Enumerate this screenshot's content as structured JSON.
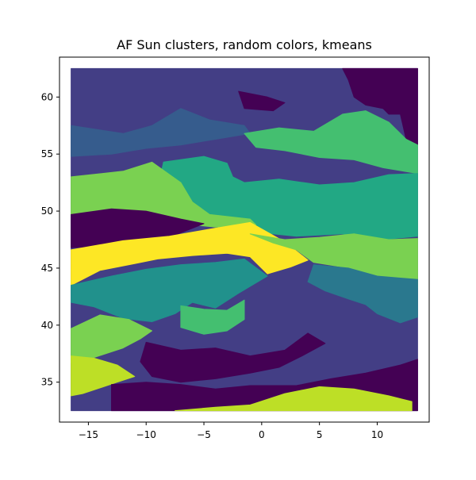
{
  "chart_data": {
    "type": "heatmap",
    "title": "AF Sun clusters, random colors, kmeans",
    "xlabel": "",
    "ylabel": "",
    "xlim": [
      -17.5,
      14.5
    ],
    "ylim": [
      31.5,
      63.5
    ],
    "x_ticks": [
      -15,
      -10,
      -5,
      0,
      5,
      10
    ],
    "y_ticks": [
      35,
      40,
      45,
      50,
      55,
      60
    ],
    "x_tick_labels": [
      "−15",
      "−10",
      "−5",
      "0",
      "5",
      "10"
    ],
    "y_tick_labels": [
      "35",
      "40",
      "45",
      "50",
      "55",
      "60"
    ],
    "grid": false,
    "legend": "none",
    "colormap": "viridis",
    "palette": [
      "#440154",
      "#433e85",
      "#365c8d",
      "#2a788e",
      "#21918c",
      "#22a884",
      "#44bf70",
      "#7ad151",
      "#bddf26",
      "#fde725"
    ],
    "regions": [
      {
        "cluster": 1,
        "color": "#433e85",
        "points": [
          [
            -16.5,
            62.5
          ],
          [
            13.5,
            62.5
          ],
          [
            13.5,
            32.5
          ],
          [
            -16.5,
            32.5
          ]
        ]
      },
      {
        "cluster": 0,
        "color": "#440154",
        "points": [
          [
            7,
            62.5
          ],
          [
            13.5,
            62.5
          ],
          [
            13.5,
            55.8
          ],
          [
            12.5,
            56.3
          ],
          [
            12,
            58.5
          ],
          [
            11,
            58.5
          ],
          [
            10.5,
            59
          ],
          [
            9,
            59.3
          ],
          [
            8,
            60
          ],
          [
            7.5,
            61.5
          ]
        ]
      },
      {
        "cluster": 2,
        "color": "#365c8d",
        "points": [
          [
            -16.5,
            57.5
          ],
          [
            -12,
            56.8
          ],
          [
            -9.5,
            57.5
          ],
          [
            -7,
            59
          ],
          [
            -4.5,
            58
          ],
          [
            -1.5,
            57.5
          ],
          [
            -1,
            56.8
          ],
          [
            -4,
            56.3
          ],
          [
            -7,
            55.8
          ],
          [
            -10,
            55.5
          ],
          [
            -13,
            55
          ],
          [
            -16.5,
            54.8
          ]
        ]
      },
      {
        "cluster": 0,
        "color": "#440154",
        "points": [
          [
            -2,
            60.5
          ],
          [
            0.5,
            60
          ],
          [
            2,
            59.5
          ],
          [
            1,
            58.8
          ],
          [
            -1.5,
            59
          ]
        ]
      },
      {
        "cluster": 6,
        "color": "#44bf70",
        "points": [
          [
            -1.5,
            56.8
          ],
          [
            1.5,
            57.3
          ],
          [
            4.5,
            57
          ],
          [
            7,
            58.5
          ],
          [
            9,
            58.8
          ],
          [
            11,
            57.8
          ],
          [
            12.5,
            56.3
          ],
          [
            13.5,
            55.8
          ],
          [
            13.5,
            53.3
          ],
          [
            10.5,
            53.8
          ],
          [
            8,
            54.5
          ],
          [
            5,
            54.7
          ],
          [
            2,
            55.3
          ],
          [
            -0.5,
            55.6
          ]
        ]
      },
      {
        "cluster": 5,
        "color": "#22a884",
        "points": [
          [
            -8.5,
            54.3
          ],
          [
            -5,
            54.8
          ],
          [
            -3,
            54.2
          ],
          [
            -2.5,
            53
          ],
          [
            -1.5,
            52.5
          ],
          [
            1.5,
            52.8
          ],
          [
            5,
            52.3
          ],
          [
            8,
            52.5
          ],
          [
            11,
            53.2
          ],
          [
            13.5,
            53.3
          ],
          [
            13.5,
            47.8
          ],
          [
            10.5,
            47.5
          ],
          [
            7,
            48
          ],
          [
            3,
            47.8
          ],
          [
            -1,
            48.2
          ],
          [
            -4.5,
            49
          ],
          [
            -7,
            50
          ],
          [
            -9,
            52
          ]
        ]
      },
      {
        "cluster": 8,
        "color": "#7ad151",
        "points": [
          [
            -16.5,
            53
          ],
          [
            -12,
            53.5
          ],
          [
            -9.5,
            54.3
          ],
          [
            -7,
            52.5
          ],
          [
            -6,
            50.8
          ],
          [
            -4.5,
            49.7
          ],
          [
            -1,
            49.3
          ],
          [
            -0.5,
            48.8
          ],
          [
            -4,
            48.6
          ],
          [
            -7,
            48.9
          ],
          [
            -10,
            49.1
          ],
          [
            -13,
            49.4
          ],
          [
            -16.5,
            49.7
          ]
        ]
      },
      {
        "cluster": 0,
        "color": "#440154",
        "points": [
          [
            -16.5,
            49.7
          ],
          [
            -13,
            50.2
          ],
          [
            -10,
            50
          ],
          [
            -7,
            49.3
          ],
          [
            -5,
            48.9
          ],
          [
            -8,
            47.7
          ],
          [
            -11,
            47.4
          ],
          [
            -14,
            46.9
          ],
          [
            -16.5,
            46.8
          ]
        ]
      },
      {
        "cluster": 9,
        "color": "#fde725",
        "points": [
          [
            -16.5,
            46.6
          ],
          [
            -12,
            47.4
          ],
          [
            -8,
            47.8
          ],
          [
            -4,
            48.5
          ],
          [
            -1,
            49
          ],
          [
            2,
            47.3
          ],
          [
            4,
            45.7
          ],
          [
            2.5,
            45.1
          ],
          [
            0.5,
            44.5
          ],
          [
            -1,
            46
          ],
          [
            -3,
            46.3
          ],
          [
            -6,
            46.1
          ],
          [
            -9,
            45.8
          ],
          [
            -11,
            45.4
          ],
          [
            -14,
            44.8
          ],
          [
            -16.5,
            43.5
          ]
        ]
      },
      {
        "cluster": 8,
        "color": "#7ad151",
        "points": [
          [
            -1,
            48
          ],
          [
            2,
            47.5
          ],
          [
            5,
            47.7
          ],
          [
            8,
            48
          ],
          [
            11,
            47.5
          ],
          [
            13.5,
            47.6
          ],
          [
            13.5,
            43.3
          ],
          [
            11,
            43.1
          ],
          [
            9,
            44.5
          ],
          [
            7,
            45.1
          ],
          [
            4.5,
            45.5
          ],
          [
            3,
            46.6
          ],
          [
            1,
            47.2
          ]
        ]
      },
      {
        "cluster": 4,
        "color": "#21918c",
        "points": [
          [
            -16.5,
            43.5
          ],
          [
            -13,
            44.3
          ],
          [
            -10,
            44.9
          ],
          [
            -7,
            45.3
          ],
          [
            -4,
            45.5
          ],
          [
            -1.5,
            45.8
          ],
          [
            0.5,
            44.3
          ],
          [
            -2,
            42.8
          ],
          [
            -4,
            41.5
          ],
          [
            -6,
            42
          ],
          [
            -7.5,
            41
          ],
          [
            -9.5,
            40.3
          ],
          [
            -12,
            40.6
          ],
          [
            -14.5,
            41.6
          ],
          [
            -16.5,
            42
          ]
        ]
      },
      {
        "cluster": 8,
        "color": "#7ad151",
        "points": [
          [
            -16.5,
            39.7
          ],
          [
            -14,
            40.9
          ],
          [
            -11.5,
            40.5
          ],
          [
            -9.5,
            39.5
          ],
          [
            -10.5,
            38.8
          ],
          [
            -12,
            38
          ],
          [
            -13.5,
            37.5
          ],
          [
            -15,
            37
          ],
          [
            -16.5,
            36.7
          ]
        ]
      },
      {
        "cluster": 8,
        "color": "#bddf26",
        "points": [
          [
            -16.5,
            37.3
          ],
          [
            -14.5,
            37.1
          ],
          [
            -12.5,
            36.5
          ],
          [
            -11,
            35.5
          ],
          [
            -12.5,
            35
          ],
          [
            -14,
            34.5
          ],
          [
            -15.5,
            34
          ],
          [
            -16.5,
            33.8
          ]
        ]
      },
      {
        "cluster": 6,
        "color": "#44bf70",
        "points": [
          [
            -7,
            41.7
          ],
          [
            -5,
            41.4
          ],
          [
            -3,
            41.3
          ],
          [
            -1.5,
            42.2
          ],
          [
            -1.5,
            40.5
          ],
          [
            -3,
            39.5
          ],
          [
            -5,
            39.2
          ],
          [
            -7,
            39.8
          ]
        ]
      },
      {
        "cluster": 0,
        "color": "#440154",
        "points": [
          [
            -10,
            38.5
          ],
          [
            -7,
            37.8
          ],
          [
            -4,
            38
          ],
          [
            -1,
            37.3
          ],
          [
            2,
            37.8
          ],
          [
            4,
            39.3
          ],
          [
            5.5,
            38.4
          ],
          [
            3.5,
            37.3
          ],
          [
            1.5,
            36.3
          ],
          [
            -1,
            35.8
          ],
          [
            -4,
            35.3
          ],
          [
            -7,
            35
          ],
          [
            -9.5,
            35.5
          ],
          [
            -10.5,
            36.8
          ]
        ]
      },
      {
        "cluster": 0,
        "color": "#440154",
        "points": [
          [
            -13,
            34.8
          ],
          [
            -10,
            35
          ],
          [
            -7,
            34.8
          ],
          [
            -4,
            34.4
          ],
          [
            -1,
            34.7
          ],
          [
            3,
            34.7
          ],
          [
            6,
            35.3
          ],
          [
            9,
            35.8
          ],
          [
            12,
            36.5
          ],
          [
            13.5,
            37
          ],
          [
            13.5,
            32.5
          ],
          [
            -13,
            32.5
          ]
        ]
      },
      {
        "cluster": 8,
        "color": "#bddf26",
        "points": [
          [
            -7.5,
            32.5
          ],
          [
            -4,
            32.8
          ],
          [
            -1,
            33
          ],
          [
            2,
            34
          ],
          [
            5,
            34.6
          ],
          [
            8,
            34.4
          ],
          [
            11,
            33.8
          ],
          [
            13,
            33.3
          ],
          [
            13,
            32.5
          ]
        ]
      },
      {
        "cluster": 3,
        "color": "#2a788e",
        "points": [
          [
            4.5,
            45.3
          ],
          [
            7.5,
            45
          ],
          [
            10,
            44.3
          ],
          [
            13.5,
            44
          ],
          [
            13.5,
            40.7
          ],
          [
            12,
            40.2
          ],
          [
            10,
            41
          ],
          [
            9,
            41.8
          ],
          [
            7.5,
            42.3
          ],
          [
            5.5,
            43
          ],
          [
            4,
            43.8
          ]
        ]
      }
    ]
  }
}
